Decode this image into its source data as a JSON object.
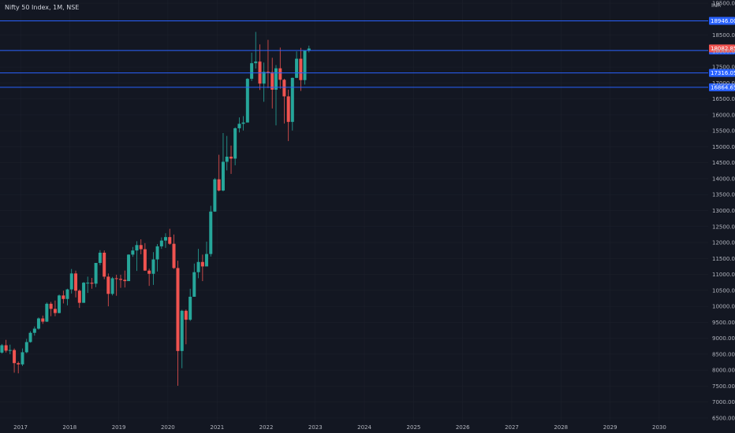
{
  "header": {
    "title": "Nifty 50 Index, 1M, NSE",
    "currency": "INR"
  },
  "colors": {
    "background": "#131722",
    "up": "#26a69a",
    "down": "#ef5350",
    "hline": "#2962ff",
    "grid": "#1e222d",
    "text": "#b2b5be"
  },
  "chart_data": {
    "type": "candlestick",
    "title": "Nifty 50 Index, 1M, NSE",
    "x_range": [
      "2016-08-01",
      "2030-12-31"
    ],
    "y_range": [
      6400,
      19600
    ],
    "y_ticks": [
      "19500.00",
      "18500.00",
      "18000.00",
      "17500.00",
      "17000.00",
      "16500.00",
      "16000.00",
      "15500.00",
      "15000.00",
      "14500.00",
      "14000.00",
      "13500.00",
      "13000.00",
      "12500.00",
      "12000.00",
      "11500.00",
      "11000.00",
      "10500.00",
      "10000.00",
      "9500.00",
      "9000.00",
      "8500.00",
      "8000.00",
      "7500.00",
      "7000.00",
      "6500.00"
    ],
    "x_ticks": [
      {
        "label": "2017",
        "date": "2017-01-01"
      },
      {
        "label": "2018",
        "date": "2018-01-01"
      },
      {
        "label": "2019",
        "date": "2019-01-01"
      },
      {
        "label": "2020",
        "date": "2020-01-01"
      },
      {
        "label": "2021",
        "date": "2021-01-01"
      },
      {
        "label": "2022",
        "date": "2022-01-01"
      },
      {
        "label": "2023",
        "date": "2023-01-01"
      },
      {
        "label": "2024",
        "date": "2024-01-01"
      },
      {
        "label": "2025",
        "date": "2025-01-01"
      },
      {
        "label": "2026",
        "date": "2026-01-01"
      },
      {
        "label": "2027",
        "date": "2027-01-01"
      },
      {
        "label": "2028",
        "date": "2028-01-01"
      },
      {
        "label": "2029",
        "date": "2029-01-01"
      },
      {
        "label": "2030",
        "date": "2030-01-01"
      }
    ],
    "horizontal_lines": [
      {
        "value": 18946.0,
        "label": "18946.00"
      },
      {
        "value": 18018.15,
        "label": "18018.15"
      },
      {
        "value": 17316.05,
        "label": "17316.05"
      },
      {
        "value": 16864.65,
        "label": "16864.65"
      }
    ],
    "last_price": {
      "value": 18082.85,
      "label": "18082.85"
    },
    "candles": [
      {
        "d": "2016-08-01",
        "o": 8550,
        "h": 8820,
        "l": 8520,
        "c": 8780
      },
      {
        "d": "2016-09-01",
        "o": 8780,
        "h": 8950,
        "l": 8550,
        "c": 8610
      },
      {
        "d": "2016-10-01",
        "o": 8610,
        "h": 8800,
        "l": 8500,
        "c": 8630
      },
      {
        "d": "2016-11-01",
        "o": 8630,
        "h": 8680,
        "l": 7920,
        "c": 8220
      },
      {
        "d": "2016-12-01",
        "o": 8220,
        "h": 8270,
        "l": 7900,
        "c": 8180
      },
      {
        "d": "2017-01-01",
        "o": 8180,
        "h": 8680,
        "l": 8130,
        "c": 8560
      },
      {
        "d": "2017-02-01",
        "o": 8560,
        "h": 8980,
        "l": 8530,
        "c": 8880
      },
      {
        "d": "2017-03-01",
        "o": 8880,
        "h": 9220,
        "l": 8860,
        "c": 9170
      },
      {
        "d": "2017-04-01",
        "o": 9170,
        "h": 9370,
        "l": 9080,
        "c": 9300
      },
      {
        "d": "2017-05-01",
        "o": 9300,
        "h": 9650,
        "l": 9270,
        "c": 9620
      },
      {
        "d": "2017-06-01",
        "o": 9620,
        "h": 9710,
        "l": 9450,
        "c": 9520
      },
      {
        "d": "2017-07-01",
        "o": 9520,
        "h": 10120,
        "l": 9510,
        "c": 10080
      },
      {
        "d": "2017-08-01",
        "o": 10080,
        "h": 10140,
        "l": 9690,
        "c": 9920
      },
      {
        "d": "2017-09-01",
        "o": 9920,
        "h": 10180,
        "l": 9690,
        "c": 9790
      },
      {
        "d": "2017-10-01",
        "o": 9790,
        "h": 10370,
        "l": 9780,
        "c": 10340
      },
      {
        "d": "2017-11-01",
        "o": 10340,
        "h": 10490,
        "l": 10090,
        "c": 10230
      },
      {
        "d": "2017-12-01",
        "o": 10230,
        "h": 10550,
        "l": 10030,
        "c": 10530
      },
      {
        "d": "2018-01-01",
        "o": 10530,
        "h": 11170,
        "l": 10400,
        "c": 11030
      },
      {
        "d": "2018-02-01",
        "o": 11030,
        "h": 11120,
        "l": 10280,
        "c": 10490
      },
      {
        "d": "2018-03-01",
        "o": 10490,
        "h": 10530,
        "l": 9950,
        "c": 10110
      },
      {
        "d": "2018-04-01",
        "o": 10110,
        "h": 10760,
        "l": 10110,
        "c": 10740
      },
      {
        "d": "2018-05-01",
        "o": 10740,
        "h": 10930,
        "l": 10420,
        "c": 10740
      },
      {
        "d": "2018-06-01",
        "o": 10740,
        "h": 10890,
        "l": 10550,
        "c": 10710
      },
      {
        "d": "2018-07-01",
        "o": 10710,
        "h": 11360,
        "l": 10600,
        "c": 11360
      },
      {
        "d": "2018-08-01",
        "o": 11360,
        "h": 11760,
        "l": 11290,
        "c": 11680
      },
      {
        "d": "2018-09-01",
        "o": 11680,
        "h": 11750,
        "l": 10850,
        "c": 10930
      },
      {
        "d": "2018-10-01",
        "o": 10930,
        "h": 11030,
        "l": 10000,
        "c": 10390
      },
      {
        "d": "2018-11-01",
        "o": 10390,
        "h": 10920,
        "l": 10340,
        "c": 10880
      },
      {
        "d": "2018-12-01",
        "o": 10880,
        "h": 10990,
        "l": 10330,
        "c": 10860
      },
      {
        "d": "2019-01-01",
        "o": 10860,
        "h": 10990,
        "l": 10580,
        "c": 10830
      },
      {
        "d": "2019-02-01",
        "o": 10830,
        "h": 11120,
        "l": 10590,
        "c": 10790
      },
      {
        "d": "2019-03-01",
        "o": 10790,
        "h": 11630,
        "l": 10820,
        "c": 11620
      },
      {
        "d": "2019-04-01",
        "o": 11620,
        "h": 11860,
        "l": 11550,
        "c": 11750
      },
      {
        "d": "2019-05-01",
        "o": 11750,
        "h": 12040,
        "l": 11110,
        "c": 11920
      },
      {
        "d": "2019-06-01",
        "o": 11920,
        "h": 12100,
        "l": 11630,
        "c": 11790
      },
      {
        "d": "2019-07-01",
        "o": 11790,
        "h": 11980,
        "l": 11110,
        "c": 11120
      },
      {
        "d": "2019-08-01",
        "o": 11120,
        "h": 11180,
        "l": 10640,
        "c": 11020
      },
      {
        "d": "2019-09-01",
        "o": 11020,
        "h": 11700,
        "l": 10670,
        "c": 11470
      },
      {
        "d": "2019-10-01",
        "o": 11470,
        "h": 11950,
        "l": 11090,
        "c": 11880
      },
      {
        "d": "2019-11-01",
        "o": 11880,
        "h": 12160,
        "l": 11800,
        "c": 12060
      },
      {
        "d": "2019-12-01",
        "o": 12060,
        "h": 12290,
        "l": 11830,
        "c": 12170
      },
      {
        "d": "2020-01-01",
        "o": 12170,
        "h": 12430,
        "l": 11930,
        "c": 11960
      },
      {
        "d": "2020-02-01",
        "o": 11960,
        "h": 12250,
        "l": 11170,
        "c": 11200
      },
      {
        "d": "2020-03-01",
        "o": 11200,
        "h": 11430,
        "l": 7510,
        "c": 8600
      },
      {
        "d": "2020-04-01",
        "o": 8600,
        "h": 9890,
        "l": 8060,
        "c": 9860
      },
      {
        "d": "2020-05-01",
        "o": 9860,
        "h": 9900,
        "l": 8810,
        "c": 9580
      },
      {
        "d": "2020-06-01",
        "o": 9580,
        "h": 10550,
        "l": 9540,
        "c": 10300
      },
      {
        "d": "2020-07-01",
        "o": 10300,
        "h": 11340,
        "l": 10300,
        "c": 11070
      },
      {
        "d": "2020-08-01",
        "o": 11070,
        "h": 11800,
        "l": 10880,
        "c": 11390
      },
      {
        "d": "2020-09-01",
        "o": 11390,
        "h": 11620,
        "l": 10790,
        "c": 11250
      },
      {
        "d": "2020-10-01",
        "o": 11250,
        "h": 12030,
        "l": 11350,
        "c": 11640
      },
      {
        "d": "2020-11-01",
        "o": 11640,
        "h": 13150,
        "l": 11560,
        "c": 12970
      },
      {
        "d": "2020-12-01",
        "o": 12970,
        "h": 14020,
        "l": 12960,
        "c": 13980
      },
      {
        "d": "2021-01-01",
        "o": 13980,
        "h": 14750,
        "l": 13600,
        "c": 13630
      },
      {
        "d": "2021-02-01",
        "o": 13630,
        "h": 15430,
        "l": 13600,
        "c": 14530
      },
      {
        "d": "2021-03-01",
        "o": 14530,
        "h": 15340,
        "l": 14260,
        "c": 14690
      },
      {
        "d": "2021-04-01",
        "o": 14690,
        "h": 15040,
        "l": 14150,
        "c": 14630
      },
      {
        "d": "2021-05-01",
        "o": 14630,
        "h": 15610,
        "l": 14420,
        "c": 15580
      },
      {
        "d": "2021-06-01",
        "o": 15580,
        "h": 15920,
        "l": 15450,
        "c": 15720
      },
      {
        "d": "2021-07-01",
        "o": 15720,
        "h": 15960,
        "l": 15510,
        "c": 15760
      },
      {
        "d": "2021-08-01",
        "o": 15760,
        "h": 17150,
        "l": 15830,
        "c": 17130
      },
      {
        "d": "2021-09-01",
        "o": 17130,
        "h": 17950,
        "l": 17060,
        "c": 17620
      },
      {
        "d": "2021-10-01",
        "o": 17620,
        "h": 18600,
        "l": 17450,
        "c": 17670
      },
      {
        "d": "2021-11-01",
        "o": 17670,
        "h": 18210,
        "l": 16780,
        "c": 16980
      },
      {
        "d": "2021-12-01",
        "o": 16980,
        "h": 17640,
        "l": 16410,
        "c": 17350
      },
      {
        "d": "2022-01-01",
        "o": 17350,
        "h": 18350,
        "l": 16840,
        "c": 17340
      },
      {
        "d": "2022-02-01",
        "o": 17340,
        "h": 17790,
        "l": 16200,
        "c": 16790
      },
      {
        "d": "2022-03-01",
        "o": 16790,
        "h": 17560,
        "l": 15670,
        "c": 17460
      },
      {
        "d": "2022-04-01",
        "o": 17460,
        "h": 18110,
        "l": 16820,
        "c": 17100
      },
      {
        "d": "2022-05-01",
        "o": 17100,
        "h": 17130,
        "l": 15730,
        "c": 16580
      },
      {
        "d": "2022-06-01",
        "o": 16580,
        "h": 16790,
        "l": 15180,
        "c": 15780
      },
      {
        "d": "2022-07-01",
        "o": 15780,
        "h": 17170,
        "l": 15510,
        "c": 17160
      },
      {
        "d": "2022-08-01",
        "o": 17160,
        "h": 17990,
        "l": 17150,
        "c": 17760
      },
      {
        "d": "2022-09-01",
        "o": 17760,
        "h": 18100,
        "l": 16750,
        "c": 17090
      },
      {
        "d": "2022-10-01",
        "o": 17090,
        "h": 18020,
        "l": 16950,
        "c": 18010
      },
      {
        "d": "2022-11-01",
        "o": 18010,
        "h": 18170,
        "l": 17960,
        "c": 18080
      }
    ]
  }
}
